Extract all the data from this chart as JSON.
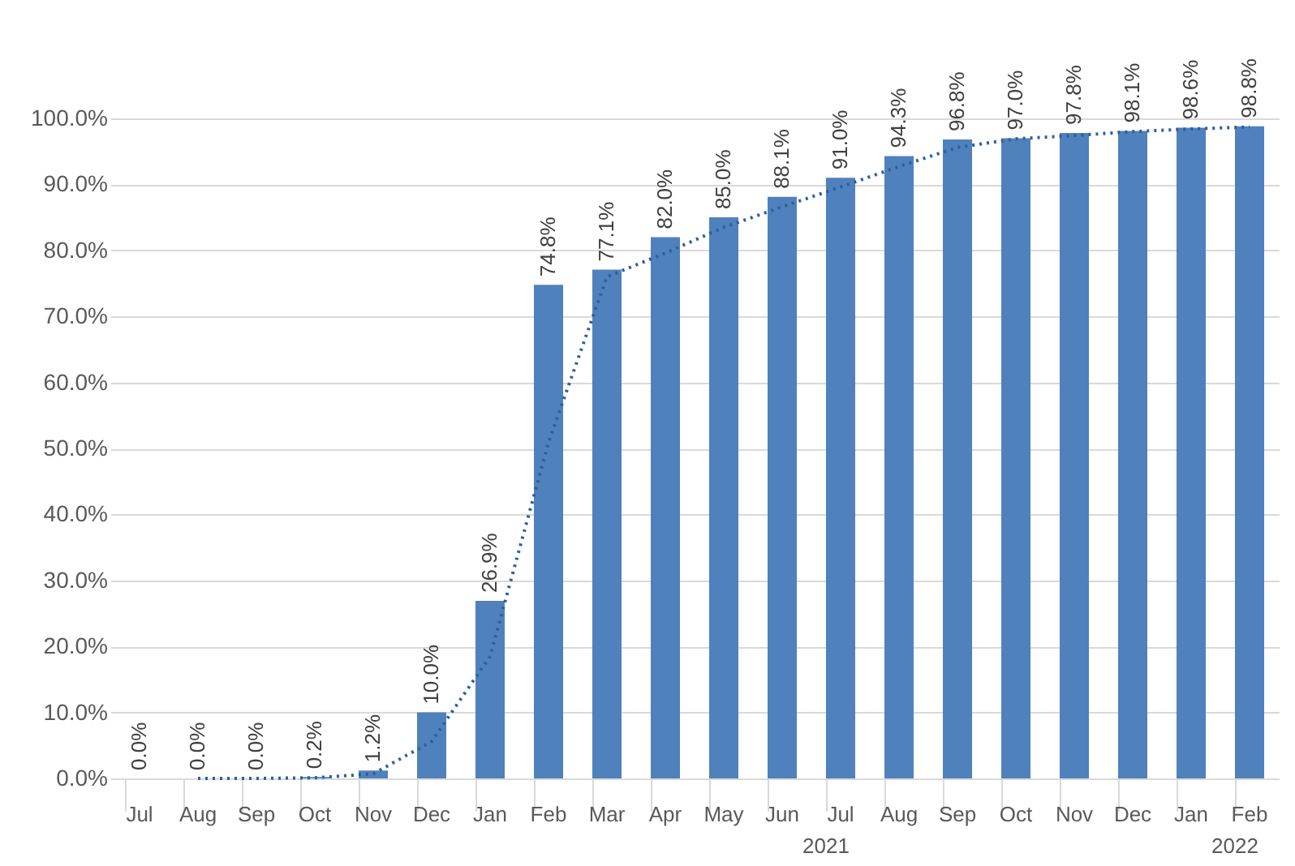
{
  "chart_data": {
    "type": "bar",
    "categories": [
      "Jul",
      "Aug",
      "Sep",
      "Oct",
      "Nov",
      "Dec",
      "Jan",
      "Feb",
      "Mar",
      "Apr",
      "May",
      "Jun",
      "Jul",
      "Aug",
      "Sep",
      "Oct",
      "Nov",
      "Dec",
      "Jan",
      "Feb"
    ],
    "series": [
      {
        "color": "#4f81bd",
        "values": [
          0,
          0,
          0,
          0.2,
          1.2,
          10.0,
          26.9,
          74.8,
          77.1,
          82.0,
          85.0,
          88.1,
          91.0,
          94.3,
          96.8,
          97.0,
          97.8,
          98.1,
          98.6,
          98.8
        ],
        "value_labels": [
          "0.0%",
          "0.0%",
          "0.0%",
          "0.2%",
          "1.2%",
          "10.0%",
          "26.9%",
          "74.8%",
          "77.1%",
          "82.0%",
          "85.0%",
          "88.1%",
          "91.0%",
          "94.3%",
          "96.8%",
          "97.0%",
          "97.8%",
          "98.1%",
          "98.6%",
          "98.8%"
        ]
      },
      {
        "type": "line",
        "color": "#2f5f9e",
        "line_style": "dotted",
        "values": [
          null,
          0,
          0,
          0.1,
          0.7,
          5.6,
          18.5,
          50.9,
          76.0,
          79.6,
          83.5,
          86.6,
          89.6,
          92.7,
          95.6,
          96.9,
          97.4,
          98.0,
          98.4,
          98.7
        ]
      }
    ],
    "ylim": [
      0,
      100
    ],
    "yticks": [
      {
        "value": 0,
        "label": "0.0%"
      },
      {
        "value": 10,
        "label": "10.0%"
      },
      {
        "value": 20,
        "label": "20.0%"
      },
      {
        "value": 30,
        "label": "30.0%"
      },
      {
        "value": 40,
        "label": "40.0%"
      },
      {
        "value": 50,
        "label": "50.0%"
      },
      {
        "value": 60,
        "label": "60.0%"
      },
      {
        "value": 70,
        "label": "70.0%"
      },
      {
        "value": 80,
        "label": "80.0%"
      },
      {
        "value": 90,
        "label": "90.0%"
      },
      {
        "value": 100,
        "label": "100.0%"
      }
    ],
    "grid": "y",
    "annotations": [
      "2021",
      "2022"
    ]
  }
}
